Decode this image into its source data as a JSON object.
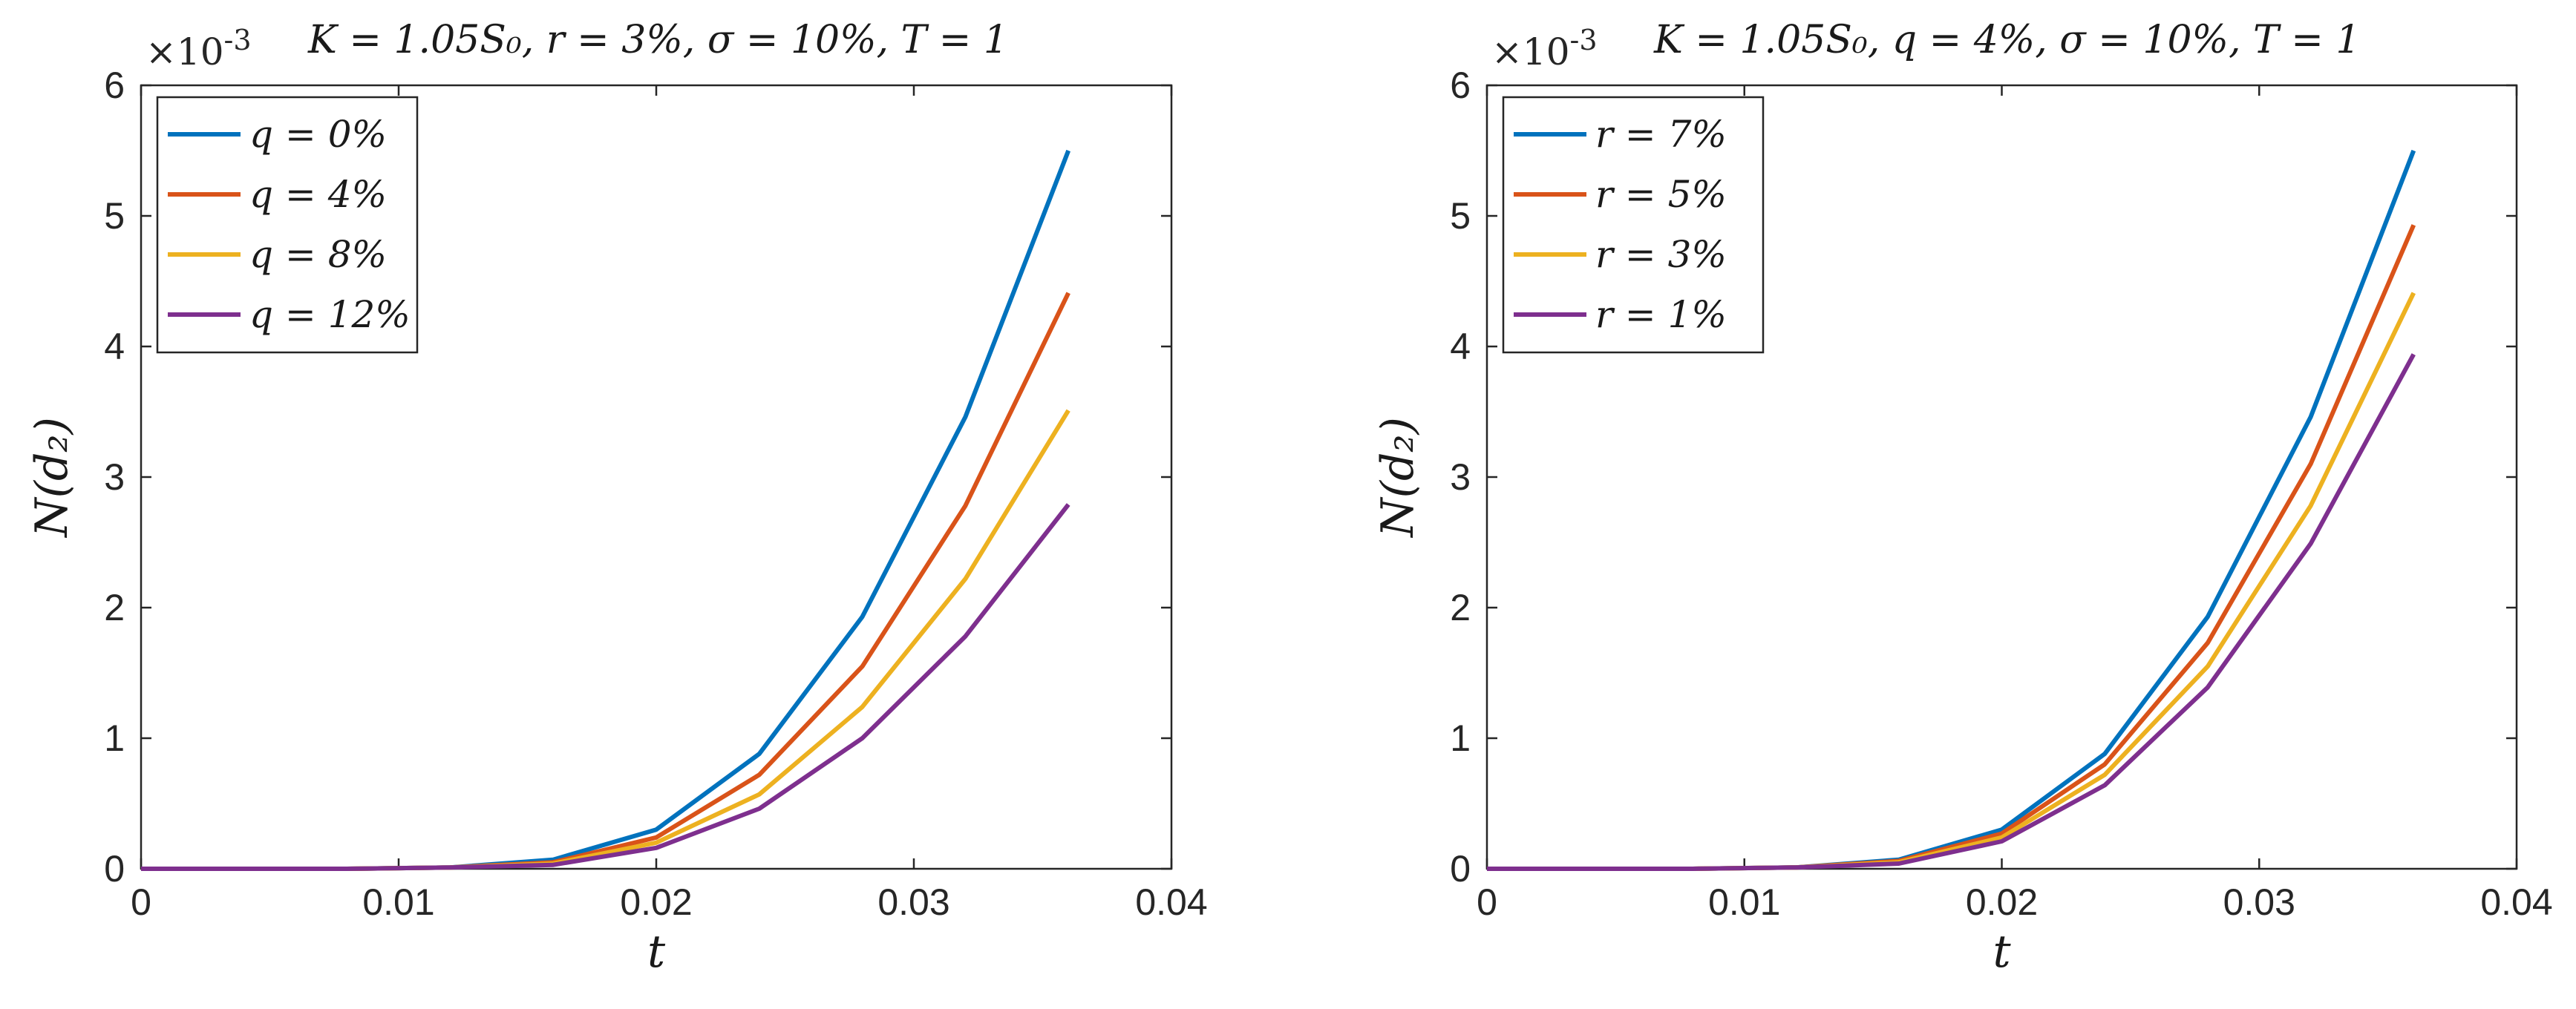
{
  "chart_data": [
    {
      "type": "line",
      "title": "K = 1.05S₀, r = 3%, σ = 10%, T = 1",
      "exponent_label": "×10",
      "exponent_power": "-3",
      "xlabel": "t",
      "ylabel": "N(d₂)",
      "xlim": [
        0,
        0.04
      ],
      "ylim": [
        0,
        6
      ],
      "xticks": [
        0,
        0.01,
        0.02,
        0.03,
        0.04
      ],
      "xtick_labels": [
        "0",
        "0.01",
        "0.02",
        "0.03",
        "0.04"
      ],
      "yticks": [
        0,
        1,
        2,
        3,
        4,
        5,
        6
      ],
      "ytick_labels": [
        "0",
        "1",
        "2",
        "3",
        "4",
        "5",
        "6"
      ],
      "legend_position": "top-left",
      "x": [
        0,
        0.004,
        0.008,
        0.012,
        0.016,
        0.02,
        0.024,
        0.028,
        0.032,
        0.036
      ],
      "series": [
        {
          "name": "q = 0%",
          "color": "#0072BD",
          "values": [
            0,
            0,
            0,
            0.01,
            0.07,
            0.3,
            0.88,
            1.93,
            3.46,
            5.5
          ]
        },
        {
          "name": "q = 4%",
          "color": "#D95319",
          "values": [
            0,
            0,
            0,
            0.01,
            0.05,
            0.24,
            0.72,
            1.55,
            2.78,
            4.41
          ]
        },
        {
          "name": "q = 8%",
          "color": "#EDB120",
          "values": [
            0,
            0,
            0,
            0.01,
            0.04,
            0.2,
            0.57,
            1.24,
            2.22,
            3.51
          ]
        },
        {
          "name": "q = 12%",
          "color": "#7E2F8E",
          "values": [
            0,
            0,
            0,
            0.01,
            0.03,
            0.16,
            0.46,
            1.0,
            1.78,
            2.79
          ]
        }
      ]
    },
    {
      "type": "line",
      "title": "K = 1.05S₀, q = 4%, σ = 10%, T = 1",
      "exponent_label": "×10",
      "exponent_power": "-3",
      "xlabel": "t",
      "ylabel": "N(d₂)",
      "xlim": [
        0,
        0.04
      ],
      "ylim": [
        0,
        6
      ],
      "xticks": [
        0,
        0.01,
        0.02,
        0.03,
        0.04
      ],
      "xtick_labels": [
        "0",
        "0.01",
        "0.02",
        "0.03",
        "0.04"
      ],
      "yticks": [
        0,
        1,
        2,
        3,
        4,
        5,
        6
      ],
      "ytick_labels": [
        "0",
        "1",
        "2",
        "3",
        "4",
        "5",
        "6"
      ],
      "legend_position": "top-left",
      "x": [
        0,
        0.004,
        0.008,
        0.012,
        0.016,
        0.02,
        0.024,
        0.028,
        0.032,
        0.036
      ],
      "series": [
        {
          "name": "r = 7%",
          "color": "#0072BD",
          "values": [
            0,
            0,
            0,
            0.01,
            0.07,
            0.3,
            0.88,
            1.93,
            3.46,
            5.5
          ]
        },
        {
          "name": "r = 5%",
          "color": "#D95319",
          "values": [
            0,
            0,
            0,
            0.01,
            0.06,
            0.27,
            0.8,
            1.73,
            3.1,
            4.93
          ]
        },
        {
          "name": "r = 3%",
          "color": "#EDB120",
          "values": [
            0,
            0,
            0,
            0.01,
            0.05,
            0.24,
            0.72,
            1.55,
            2.78,
            4.41
          ]
        },
        {
          "name": "r = 1%",
          "color": "#7E2F8E",
          "values": [
            0,
            0,
            0,
            0.01,
            0.04,
            0.21,
            0.64,
            1.39,
            2.49,
            3.94
          ]
        }
      ]
    }
  ]
}
